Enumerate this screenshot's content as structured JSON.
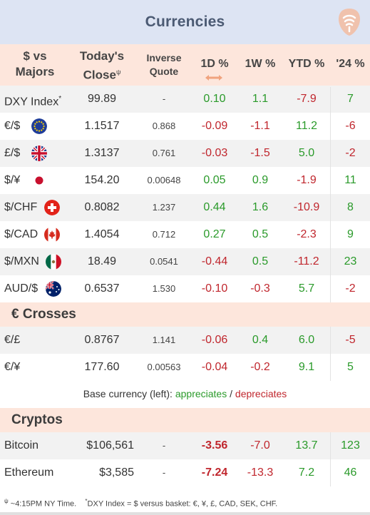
{
  "title": "Currencies",
  "colors": {
    "title_bg": "#dde4f3",
    "header_bg": "#fde6dc",
    "positive": "#2a9a2a",
    "negative": "#c0262d",
    "logo": "#f0c2ad"
  },
  "header": {
    "name_line1": "$ vs",
    "name_line2": "Majors",
    "close_line1": "Today's",
    "close_line2": "Close",
    "close_mark": "ψ",
    "inverse_line1": "Inverse",
    "inverse_line2": "Quote",
    "d1": "1D %",
    "w1": "1W %",
    "ytd": "YTD %",
    "y24": "'24 %",
    "sort_icon": "double-arrow-icon"
  },
  "majors": [
    {
      "name": "DXY Index",
      "mark": "*",
      "flag": null,
      "close": "99.89",
      "inverse": "-",
      "d1": "0.10",
      "w1": "1.1",
      "ytd": "-7.9",
      "y24": "7",
      "d1_sign": "pos",
      "w1_sign": "pos",
      "ytd_sign": "neg",
      "y24_sign": "pos"
    },
    {
      "name": "€/$",
      "mark": "",
      "flag": "eu-flag-icon",
      "close": "1.1517",
      "inverse": "0.868",
      "d1": "-0.09",
      "w1": "-1.1",
      "ytd": "11.2",
      "y24": "-6",
      "d1_sign": "neg",
      "w1_sign": "neg",
      "ytd_sign": "pos",
      "y24_sign": "neg"
    },
    {
      "name": "£/$",
      "mark": "",
      "flag": "uk-flag-icon",
      "close": "1.3137",
      "inverse": "0.761",
      "d1": "-0.03",
      "w1": "-1.5",
      "ytd": "5.0",
      "y24": "-2",
      "d1_sign": "neg",
      "w1_sign": "neg",
      "ytd_sign": "pos",
      "y24_sign": "neg"
    },
    {
      "name": "$/¥",
      "mark": "",
      "flag": "japan-flag-icon",
      "close": "154.20",
      "inverse": "0.00648",
      "d1": "0.05",
      "w1": "0.9",
      "ytd": "-1.9",
      "y24": "11",
      "d1_sign": "pos",
      "w1_sign": "pos",
      "ytd_sign": "neg",
      "y24_sign": "pos"
    },
    {
      "name": "$/CHF",
      "mark": "",
      "flag": "swiss-flag-icon",
      "close": "0.8082",
      "inverse": "1.237",
      "d1": "0.44",
      "w1": "1.6",
      "ytd": "-10.9",
      "y24": "8",
      "d1_sign": "pos",
      "w1_sign": "pos",
      "ytd_sign": "neg",
      "y24_sign": "pos"
    },
    {
      "name": "$/CAD",
      "mark": "",
      "flag": "canada-flag-icon",
      "close": "1.4054",
      "inverse": "0.712",
      "d1": "0.27",
      "w1": "0.5",
      "ytd": "-2.3",
      "y24": "9",
      "d1_sign": "pos",
      "w1_sign": "pos",
      "ytd_sign": "neg",
      "y24_sign": "pos"
    },
    {
      "name": "$/MXN",
      "mark": "",
      "flag": "mexico-flag-icon",
      "close": "18.49",
      "inverse": "0.0541",
      "d1": "-0.44",
      "w1": "0.5",
      "ytd": "-11.2",
      "y24": "23",
      "d1_sign": "neg",
      "w1_sign": "pos",
      "ytd_sign": "neg",
      "y24_sign": "pos"
    },
    {
      "name": "AUD/$",
      "mark": "",
      "flag": "australia-flag-icon",
      "close": "0.6537",
      "inverse": "1.530",
      "d1": "-0.10",
      "w1": "-0.3",
      "ytd": "5.7",
      "y24": "-2",
      "d1_sign": "neg",
      "w1_sign": "neg",
      "ytd_sign": "pos",
      "y24_sign": "neg"
    }
  ],
  "crosses_title": "€ Crosses",
  "crosses": [
    {
      "name": "€/£",
      "close": "0.8767",
      "inverse": "1.141",
      "d1": "-0.06",
      "w1": "0.4",
      "ytd": "6.0",
      "y24": "-5",
      "d1_sign": "neg",
      "w1_sign": "pos",
      "ytd_sign": "pos",
      "y24_sign": "neg"
    },
    {
      "name": "€/¥",
      "close": "177.60",
      "inverse": "0.00563",
      "d1": "-0.04",
      "w1": "-0.2",
      "ytd": "9.1",
      "y24": "5",
      "d1_sign": "neg",
      "w1_sign": "neg",
      "ytd_sign": "pos",
      "y24_sign": "pos"
    }
  ],
  "legend": {
    "prefix": "Base currency (left):",
    "appreciates": "appreciates",
    "separator": "/",
    "depreciates": "depreciates"
  },
  "cryptos_title": "Cryptos",
  "cryptos": [
    {
      "name": "Bitcoin",
      "close": "$106,561",
      "inverse": "-",
      "d1": "-3.56",
      "w1": "-7.0",
      "ytd": "13.7",
      "y24": "123",
      "d1_sign": "neg",
      "w1_sign": "neg",
      "ytd_sign": "pos",
      "y24_sign": "pos"
    },
    {
      "name": "Ethereum",
      "close": "$3,585",
      "inverse": "-",
      "d1": "-7.24",
      "w1": "-13.3",
      "ytd": "7.2",
      "y24": "46",
      "d1_sign": "neg",
      "w1_sign": "neg",
      "ytd_sign": "pos",
      "y24_sign": "pos"
    }
  ],
  "footnote": {
    "time_mark": "ψ",
    "time_text": "~4:15PM NY Time.",
    "dxy_mark": "*",
    "dxy_text": "DXY Index = $ versus basket: €, ¥, £, CAD, SEK, CHF."
  }
}
